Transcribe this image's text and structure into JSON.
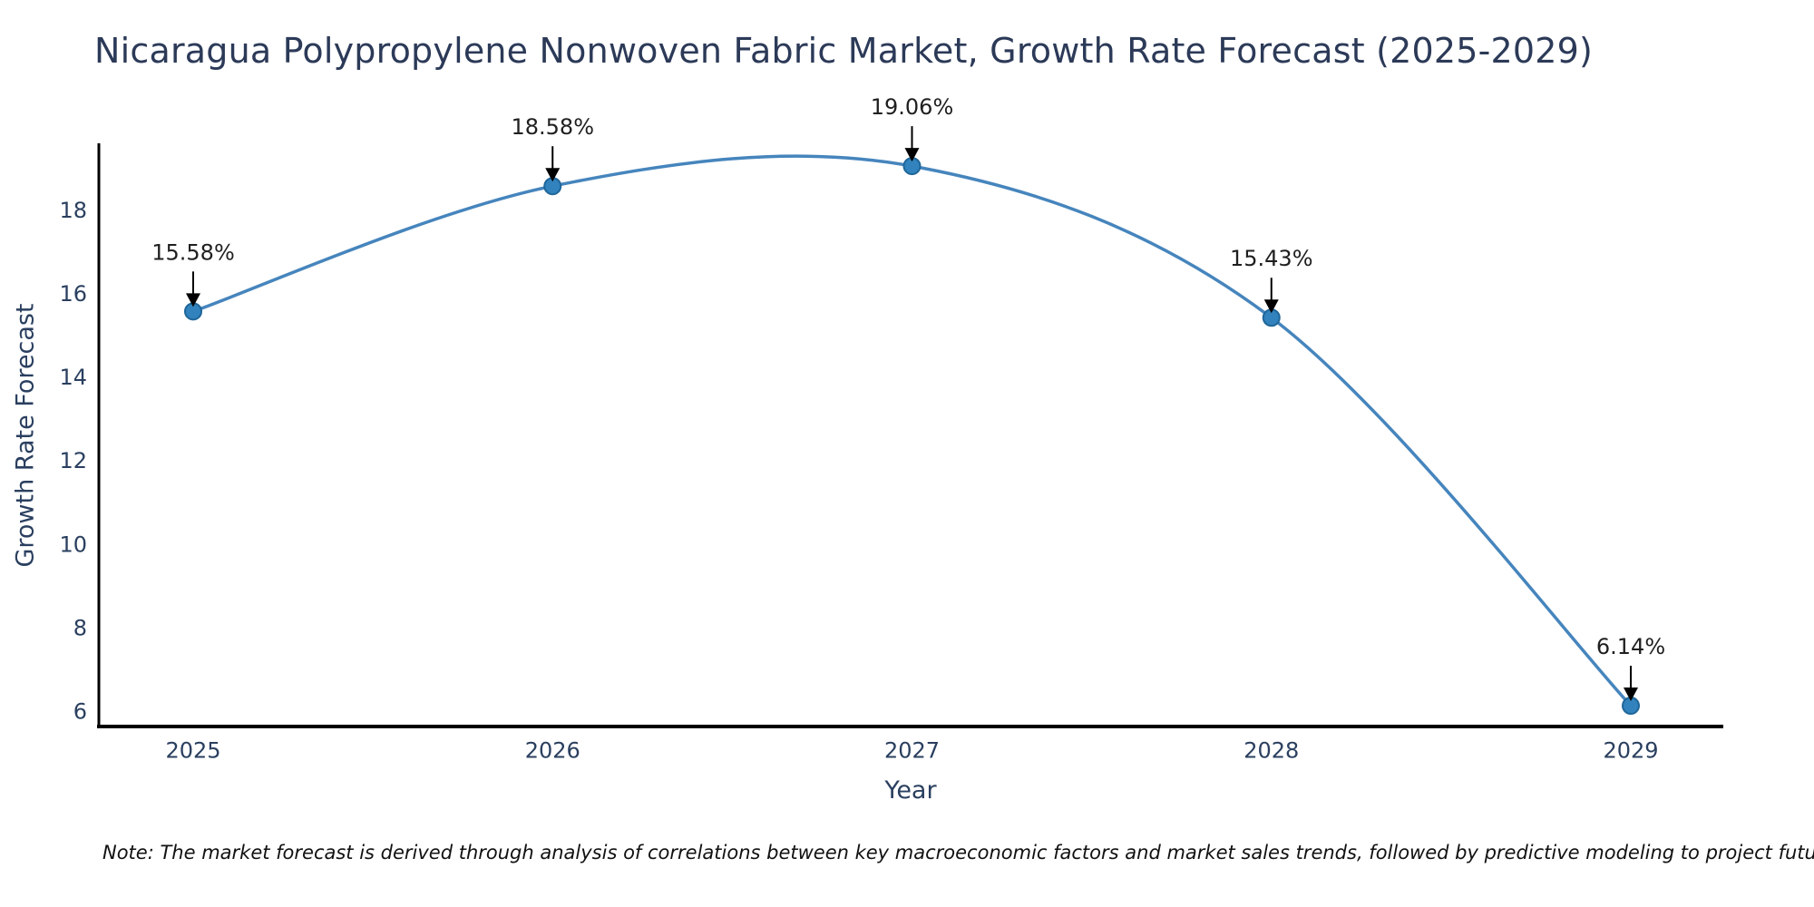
{
  "chart_data": {
    "type": "line",
    "title": "Nicaragua Polypropylene Nonwoven Fabric Market, Growth Rate Forecast (2025-2029)",
    "xlabel": "Year",
    "ylabel": "Growth Rate Forecast",
    "categories": [
      2025,
      2026,
      2027,
      2028,
      2029
    ],
    "values": [
      15.58,
      18.58,
      19.06,
      15.43,
      6.14
    ],
    "point_labels": [
      "15.58%",
      "18.58%",
      "19.06%",
      "15.43%",
      "6.14%"
    ],
    "yticks": [
      6,
      8,
      10,
      12,
      14,
      16,
      18
    ],
    "ylim": [
      5.6,
      19.6
    ],
    "grid": false,
    "legend": "none",
    "smooth_spline": true,
    "note": "Note: The market forecast is derived through analysis of correlations between key macroeconomic factors and market sales trends, followed by predictive modeling to project future sales",
    "colors": {
      "line": "#4685bd",
      "marker_fill": "#3182bd",
      "marker_edge": "#1f6699",
      "axis": "#000000",
      "tick_text": "#2a3f5f",
      "annotation_text": "#1f1f1f",
      "arrow": "#000000"
    }
  }
}
